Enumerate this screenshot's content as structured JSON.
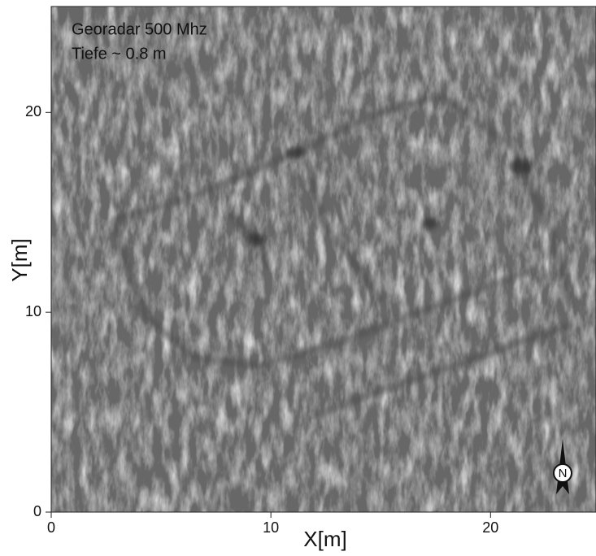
{
  "chart_data": {
    "type": "image",
    "annotations": [
      "Georadar 500 Mhz",
      "Tiefe ~ 0.8 m"
    ],
    "x_label": "X[m]",
    "y_label": "Y[m]",
    "xlim": [
      0,
      24.8
    ],
    "ylim": [
      0,
      25.3
    ],
    "xticks": [
      0,
      10,
      20
    ],
    "yticks": [
      0,
      10,
      20
    ],
    "north_label": "N"
  }
}
